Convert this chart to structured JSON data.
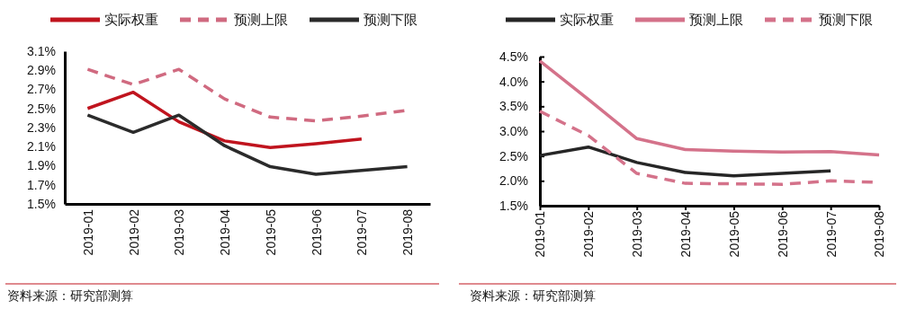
{
  "chart_data": [
    {
      "type": "line",
      "categories": [
        "2019-01",
        "2019-02",
        "2019-03",
        "2019-04",
        "2019-05",
        "2019-06",
        "2019-07",
        "2019-08"
      ],
      "ylim": [
        1.5,
        3.1
      ],
      "yticks": [
        {
          "value": 1.5,
          "label": "1.5%"
        },
        {
          "value": 1.7,
          "label": "1.7%"
        },
        {
          "value": 1.9,
          "label": "1.9%"
        },
        {
          "value": 2.1,
          "label": "2.1%"
        },
        {
          "value": 2.3,
          "label": "2.3%"
        },
        {
          "value": 2.5,
          "label": "2.5%"
        },
        {
          "value": 2.7,
          "label": "2.7%"
        },
        {
          "value": 2.9,
          "label": "2.9%"
        },
        {
          "value": 3.1,
          "label": "3.1%"
        }
      ],
      "legend": "top",
      "annotations": [
        "资料来源：研究部测算"
      ],
      "series": [
        {
          "name": "实际权重",
          "color": "#c0141e",
          "line_style": "solid",
          "values": [
            2.5,
            2.67,
            2.36,
            2.16,
            2.09,
            2.13,
            2.18,
            null
          ]
        },
        {
          "name": "预测上限",
          "color": "#d06a80",
          "line_style": "dashed",
          "values": [
            2.91,
            2.75,
            2.91,
            2.6,
            2.41,
            2.37,
            2.42,
            2.48
          ]
        },
        {
          "name": "预测下限",
          "color": "#2b2b2b",
          "line_style": "solid",
          "values": [
            2.43,
            2.25,
            2.43,
            2.11,
            1.89,
            1.81,
            1.85,
            1.89
          ]
        }
      ]
    },
    {
      "type": "line",
      "categories": [
        "2019-01",
        "2019-02",
        "2019-03",
        "2019-04",
        "2019-05",
        "2019-06",
        "2019-07",
        "2019-08"
      ],
      "ylim": [
        1.5,
        4.5
      ],
      "yticks": [
        {
          "value": 1.5,
          "label": "1.5%"
        },
        {
          "value": 2.0,
          "label": "2.0%"
        },
        {
          "value": 2.5,
          "label": "2.5%"
        },
        {
          "value": 3.0,
          "label": "3.0%"
        },
        {
          "value": 3.5,
          "label": "3.5%"
        },
        {
          "value": 4.0,
          "label": "4.0%"
        },
        {
          "value": 4.5,
          "label": "4.5%"
        }
      ],
      "legend": "top",
      "annotations": [
        "资料来源：研究部测算"
      ],
      "series": [
        {
          "name": "实际权重",
          "color": "#262626",
          "line_style": "solid",
          "values": [
            2.51,
            2.68,
            2.37,
            2.17,
            2.1,
            2.15,
            2.2,
            null
          ]
        },
        {
          "name": "预测上限",
          "color": "#d4728a",
          "line_style": "solid",
          "values": [
            4.41,
            3.64,
            2.85,
            2.63,
            2.6,
            2.58,
            2.59,
            2.52
          ]
        },
        {
          "name": "预测下限",
          "color": "#d4728a",
          "line_style": "dashed",
          "values": [
            3.4,
            2.91,
            2.15,
            1.95,
            1.94,
            1.93,
            2.0,
            1.97
          ]
        }
      ]
    }
  ]
}
